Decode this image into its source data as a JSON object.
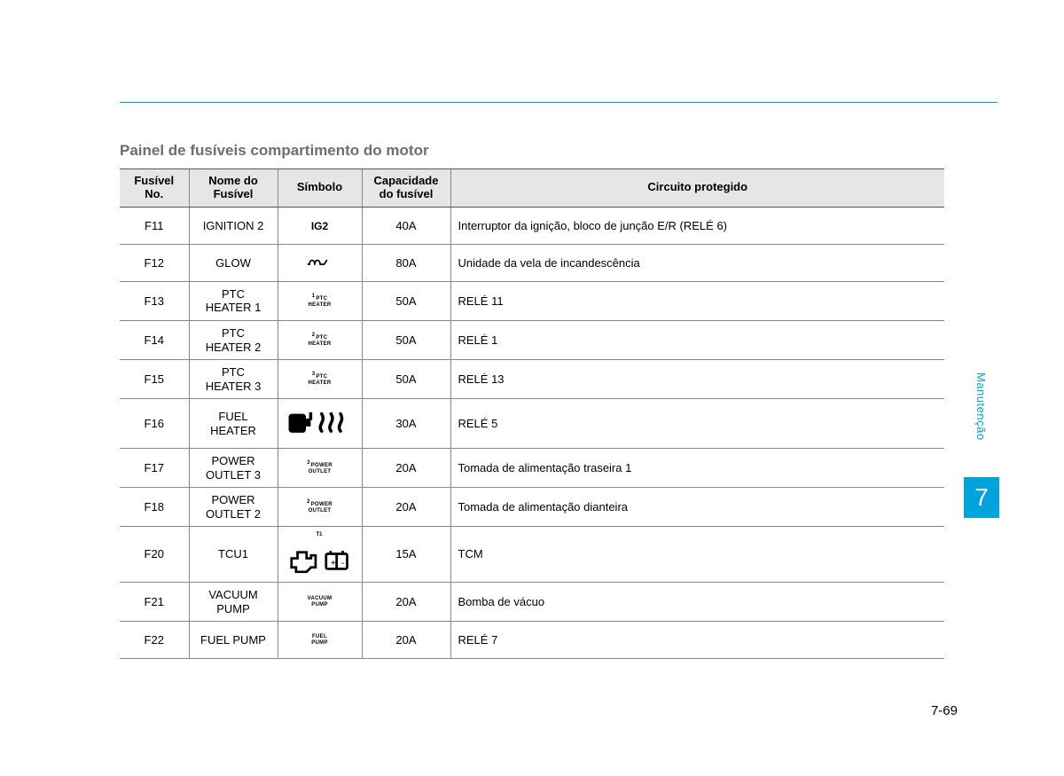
{
  "header": {
    "rule_color": "#00a3da"
  },
  "section_title": "Painel de fusíveis compartimento do motor",
  "table": {
    "columns": {
      "no": "Fusível\nNo.",
      "name": "Nome do\nFusível",
      "sym": "Símbolo",
      "cap": "Capacidade\ndo fusível",
      "desc": "Circuito protegido"
    },
    "rows": [
      {
        "no": "F11",
        "name": "IGNITION 2",
        "sym_type": "text-ig2",
        "sym_text": "IG2",
        "cap": "40A",
        "desc": "Interruptor da ignição, bloco de junção E/R (RELÉ 6)"
      },
      {
        "no": "F12",
        "name": "GLOW",
        "sym_type": "glow",
        "cap": "80A",
        "desc": "Unidade da vela de incandescência"
      },
      {
        "no": "F13",
        "name": "PTC\nHEATER 1",
        "sym_type": "ptc",
        "sup": "1",
        "l1": "PTC",
        "l2": "HEATER",
        "cap": "50A",
        "desc": "RELÉ 11"
      },
      {
        "no": "F14",
        "name": "PTC\nHEATER 2",
        "sym_type": "ptc",
        "sup": "2",
        "l1": "PTC",
        "l2": "HEATER",
        "cap": "50A",
        "desc": "RELÉ 1"
      },
      {
        "no": "F15",
        "name": "PTC\nHEATER 3",
        "sym_type": "ptc",
        "sup": "3",
        "l1": "PTC",
        "l2": "HEATER",
        "cap": "50A",
        "desc": "RELÉ 13"
      },
      {
        "no": "F16",
        "name": "FUEL\nHEATER",
        "sym_type": "fuelheater",
        "cap": "30A",
        "desc": "RELÉ 5"
      },
      {
        "no": "F17",
        "name": "POWER\nOUTLET 3",
        "sym_type": "ptc",
        "sup": "3",
        "l1": "POWER",
        "l2": "OUTLET",
        "cap": "20A",
        "desc": "Tomada de alimentação traseira 1"
      },
      {
        "no": "F18",
        "name": "POWER\nOUTLET 2",
        "sym_type": "ptc",
        "sup": "2",
        "l1": "POWER",
        "l2": "OUTLET",
        "cap": "20A",
        "desc": "Tomada de alimentação dianteira"
      },
      {
        "no": "F20",
        "name": "TCU1",
        "sym_type": "tcu",
        "cap": "15A",
        "desc": "TCM"
      },
      {
        "no": "F21",
        "name": "VACUUM\nPUMP",
        "sym_type": "stack",
        "l1": "VACUUM",
        "l2": "PUMP",
        "cap": "20A",
        "desc": "Bomba de vácuo"
      },
      {
        "no": "F22",
        "name": "FUEL PUMP",
        "sym_type": "stack",
        "l1": "FUEL",
        "l2": "PUMP",
        "cap": "20A",
        "desc": "RELÉ 7"
      }
    ]
  },
  "side": {
    "label": "Manutenção",
    "chapter": "7",
    "tab_color": "#00a3da"
  },
  "page_number": "7-69"
}
